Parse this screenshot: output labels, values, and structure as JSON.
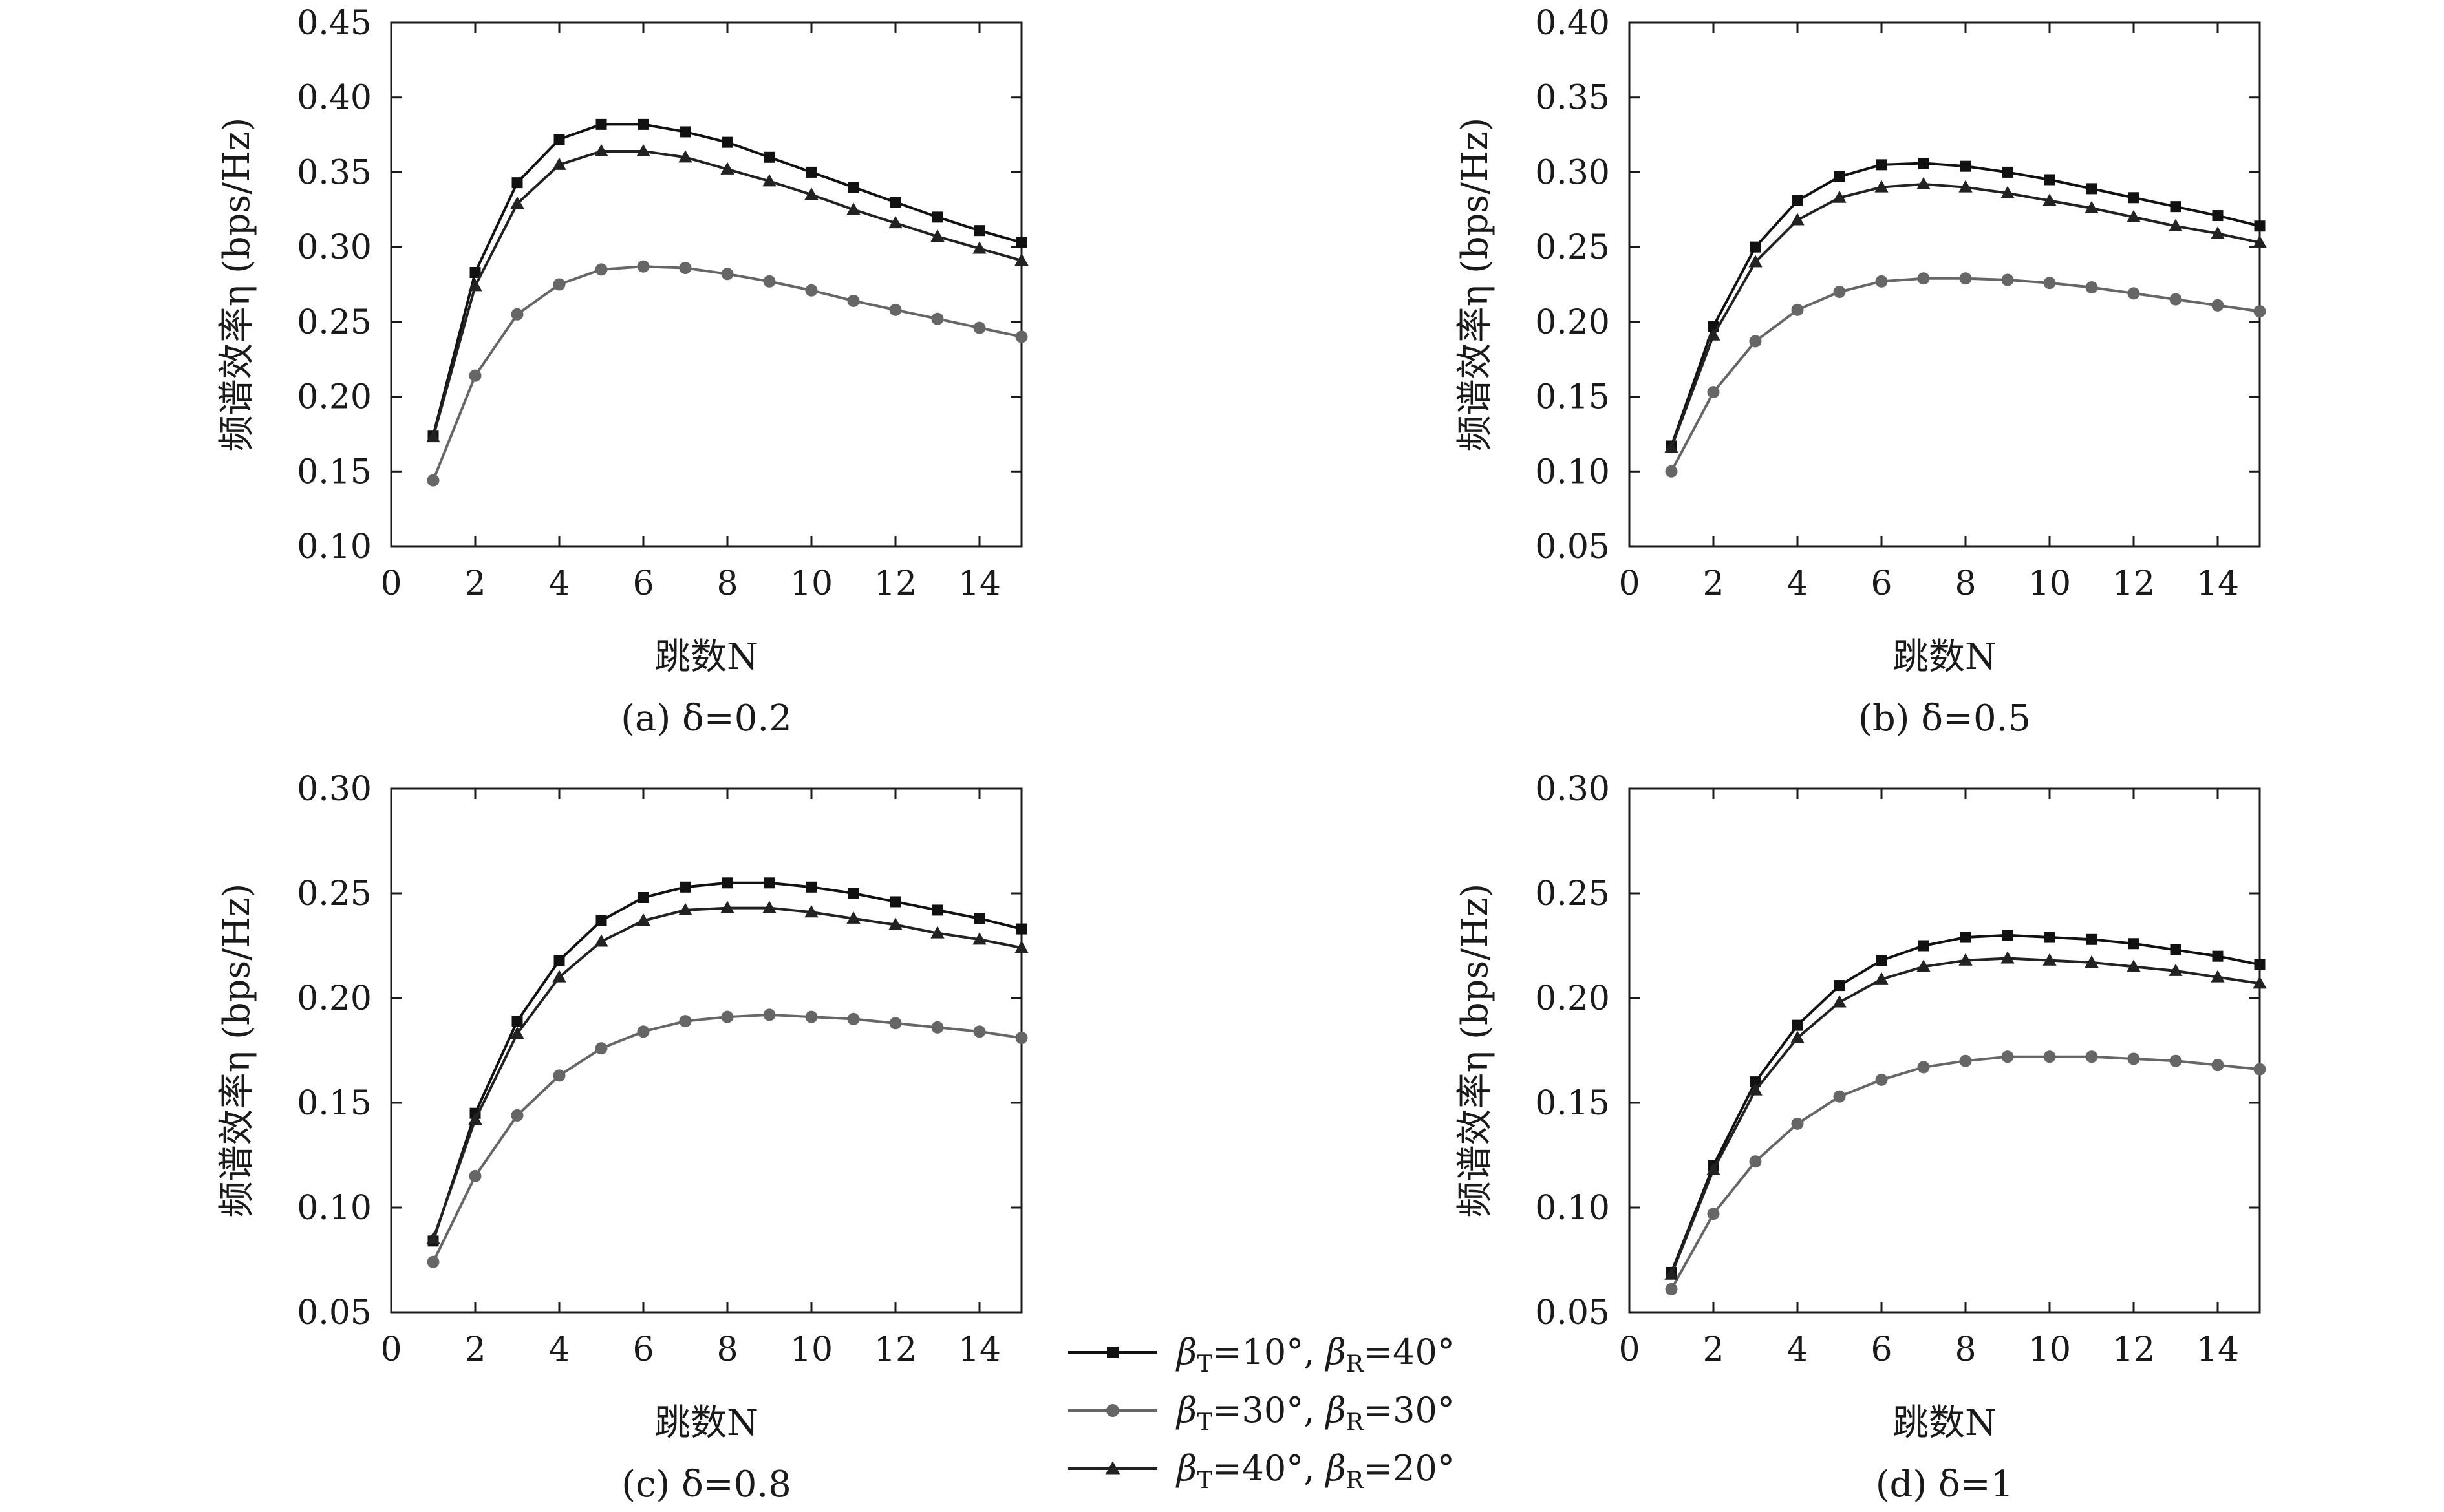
{
  "legend": [
    {
      "marker": "square",
      "color": "#111111",
      "label": "βT=10°, βR=40°",
      "beta_t_sym": "β",
      "beta_t_sub": "T",
      "beta_t_val": "=10°,",
      "beta_r_sym": "β",
      "beta_r_sub": "R",
      "beta_r_val": "=40°"
    },
    {
      "marker": "circle",
      "color": "#666666",
      "label": "βT=30°, βR=30°",
      "beta_t_sym": "β",
      "beta_t_sub": "T",
      "beta_t_val": "=30°,",
      "beta_r_sym": "β",
      "beta_r_sub": "R",
      "beta_r_val": "=30°"
    },
    {
      "marker": "triangle",
      "color": "#222222",
      "label": "βT=40°, βR=20°",
      "beta_t_sym": "β",
      "beta_t_sub": "T",
      "beta_t_val": "=40°,",
      "beta_r_sym": "β",
      "beta_r_sub": "R",
      "beta_r_val": "=20°"
    }
  ],
  "chart_data": [
    {
      "type": "line",
      "caption": "(a) δ=0.2",
      "xlabel": "跳数N",
      "ylabel": "频谱效率η (bps/Hz)",
      "xlim": [
        0,
        15
      ],
      "ylim": [
        0.1,
        0.45
      ],
      "xticks": [
        0,
        2,
        4,
        6,
        8,
        10,
        12,
        14
      ],
      "yticks": [
        "0.10",
        "0.15",
        "0.20",
        "0.25",
        "0.30",
        "0.35",
        "0.40",
        "0.45"
      ],
      "x": [
        1,
        2,
        3,
        4,
        5,
        6,
        7,
        8,
        9,
        10,
        11,
        12,
        13,
        14,
        15
      ],
      "series": [
        {
          "name": "βT=10°, βR=40°",
          "marker": "square",
          "color": "#111111",
          "values": [
            0.174,
            0.283,
            0.343,
            0.372,
            0.382,
            0.382,
            0.377,
            0.37,
            0.36,
            0.35,
            0.34,
            0.33,
            0.32,
            0.311,
            0.303
          ]
        },
        {
          "name": "βT=30°, βR=30°",
          "marker": "circle",
          "color": "#666666",
          "values": [
            0.144,
            0.214,
            0.255,
            0.275,
            0.285,
            0.287,
            0.286,
            0.282,
            0.277,
            0.271,
            0.264,
            0.258,
            0.252,
            0.246,
            0.24
          ]
        },
        {
          "name": "βT=40°, βR=20°",
          "marker": "triangle",
          "color": "#222222",
          "values": [
            0.173,
            0.274,
            0.329,
            0.355,
            0.364,
            0.364,
            0.36,
            0.352,
            0.344,
            0.335,
            0.325,
            0.316,
            0.307,
            0.299,
            0.291
          ]
        }
      ]
    },
    {
      "type": "line",
      "caption": "(b) δ=0.5",
      "xlabel": "跳数N",
      "ylabel": "频谱效率η (bps/Hz)",
      "xlim": [
        0,
        15
      ],
      "ylim": [
        0.05,
        0.4
      ],
      "xticks": [
        0,
        2,
        4,
        6,
        8,
        10,
        12,
        14
      ],
      "yticks": [
        "0.05",
        "0.10",
        "0.15",
        "0.20",
        "0.25",
        "0.30",
        "0.35",
        "0.40"
      ],
      "x": [
        1,
        2,
        3,
        4,
        5,
        6,
        7,
        8,
        9,
        10,
        11,
        12,
        13,
        14,
        15
      ],
      "series": [
        {
          "name": "βT=10°, βR=40°",
          "marker": "square",
          "color": "#111111",
          "values": [
            0.117,
            0.197,
            0.25,
            0.281,
            0.297,
            0.305,
            0.306,
            0.304,
            0.3,
            0.295,
            0.289,
            0.283,
            0.277,
            0.271,
            0.264
          ]
        },
        {
          "name": "βT=30°, βR=30°",
          "marker": "circle",
          "color": "#666666",
          "values": [
            0.1,
            0.153,
            0.187,
            0.208,
            0.22,
            0.227,
            0.229,
            0.229,
            0.228,
            0.226,
            0.223,
            0.219,
            0.215,
            0.211,
            0.207
          ]
        },
        {
          "name": "βT=40°, βR=20°",
          "marker": "triangle",
          "color": "#222222",
          "values": [
            0.116,
            0.191,
            0.24,
            0.268,
            0.283,
            0.29,
            0.292,
            0.29,
            0.286,
            0.281,
            0.276,
            0.27,
            0.264,
            0.259,
            0.253
          ]
        }
      ]
    },
    {
      "type": "line",
      "caption": "(c) δ=0.8",
      "xlabel": "跳数N",
      "ylabel": "频谱效率η (bps/Hz)",
      "xlim": [
        0,
        15
      ],
      "ylim": [
        0.05,
        0.3
      ],
      "xticks": [
        0,
        2,
        4,
        6,
        8,
        10,
        12,
        14
      ],
      "yticks": [
        "0.05",
        "0.10",
        "0.15",
        "0.20",
        "0.25",
        "0.30"
      ],
      "x": [
        1,
        2,
        3,
        4,
        5,
        6,
        7,
        8,
        9,
        10,
        11,
        12,
        13,
        14,
        15
      ],
      "series": [
        {
          "name": "βT=10°, βR=40°",
          "marker": "square",
          "color": "#111111",
          "values": [
            0.084,
            0.145,
            0.189,
            0.218,
            0.237,
            0.248,
            0.253,
            0.255,
            0.255,
            0.253,
            0.25,
            0.246,
            0.242,
            0.238,
            0.233
          ]
        },
        {
          "name": "βT=30°, βR=30°",
          "marker": "circle",
          "color": "#666666",
          "values": [
            0.074,
            0.115,
            0.144,
            0.163,
            0.176,
            0.184,
            0.189,
            0.191,
            0.192,
            0.191,
            0.19,
            0.188,
            0.186,
            0.184,
            0.181
          ]
        },
        {
          "name": "βT=40°, βR=20°",
          "marker": "triangle",
          "color": "#222222",
          "values": [
            0.085,
            0.142,
            0.183,
            0.21,
            0.227,
            0.237,
            0.242,
            0.243,
            0.243,
            0.241,
            0.238,
            0.235,
            0.231,
            0.228,
            0.224
          ]
        }
      ]
    },
    {
      "type": "line",
      "caption": "(d) δ=1",
      "xlabel": "跳数N",
      "ylabel": "频谱效率η (bps/Hz)",
      "xlim": [
        0,
        15
      ],
      "ylim": [
        0.05,
        0.3
      ],
      "xticks": [
        0,
        2,
        4,
        6,
        8,
        10,
        12,
        14
      ],
      "yticks": [
        "0.05",
        "0.10",
        "0.15",
        "0.20",
        "0.25",
        "0.30"
      ],
      "x": [
        1,
        2,
        3,
        4,
        5,
        6,
        7,
        8,
        9,
        10,
        11,
        12,
        13,
        14,
        15
      ],
      "series": [
        {
          "name": "βT=10°, βR=40°",
          "marker": "square",
          "color": "#111111",
          "values": [
            0.069,
            0.12,
            0.16,
            0.187,
            0.206,
            0.218,
            0.225,
            0.229,
            0.23,
            0.229,
            0.228,
            0.226,
            0.223,
            0.22,
            0.216
          ]
        },
        {
          "name": "βT=30°, βR=30°",
          "marker": "circle",
          "color": "#666666",
          "values": [
            0.061,
            0.097,
            0.122,
            0.14,
            0.153,
            0.161,
            0.167,
            0.17,
            0.172,
            0.172,
            0.172,
            0.171,
            0.17,
            0.168,
            0.166
          ]
        },
        {
          "name": "βT=40°, βR=20°",
          "marker": "triangle",
          "color": "#222222",
          "values": [
            0.068,
            0.118,
            0.156,
            0.181,
            0.198,
            0.209,
            0.215,
            0.218,
            0.219,
            0.218,
            0.217,
            0.215,
            0.213,
            0.21,
            0.207
          ]
        }
      ]
    }
  ]
}
